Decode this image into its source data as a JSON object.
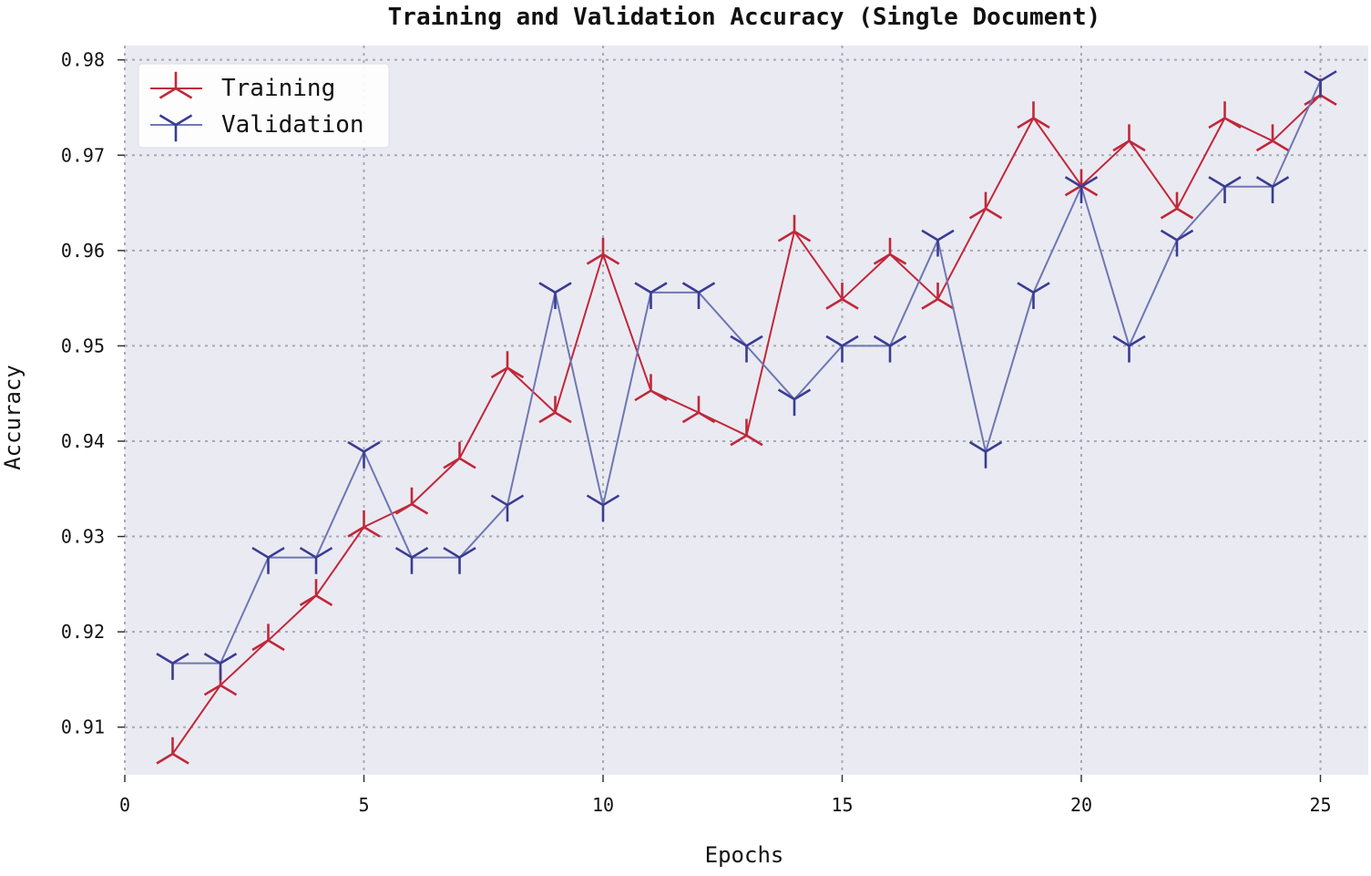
{
  "chart_data": {
    "type": "line",
    "title": "Training and Validation Accuracy (Single Document)",
    "xlabel": "Epochs",
    "ylabel": "Accuracy",
    "xlim": [
      0,
      26
    ],
    "ylim": [
      0.905,
      0.9815
    ],
    "x_ticks": [
      0,
      5,
      10,
      15,
      20,
      25
    ],
    "y_ticks": [
      0.91,
      0.92,
      0.93,
      0.94,
      0.95,
      0.96,
      0.97,
      0.98
    ],
    "x_tick_labels": [
      "0",
      "5",
      "10",
      "15",
      "20",
      "25"
    ],
    "y_tick_labels": [
      "0.91",
      "0.92",
      "0.93",
      "0.94",
      "0.95",
      "0.96",
      "0.97",
      "0.98"
    ],
    "grid": true,
    "legend_position": "top-left",
    "background_color": "#eaeaf2",
    "x": [
      1,
      2,
      3,
      4,
      5,
      6,
      7,
      8,
      9,
      10,
      11,
      12,
      13,
      14,
      15,
      16,
      17,
      18,
      19,
      20,
      21,
      22,
      23,
      24,
      25
    ],
    "series": [
      {
        "name": "Training",
        "color": "#c0283a",
        "marker": "tri-up",
        "values": [
          0.9072,
          0.9144,
          0.9191,
          0.9238,
          0.931,
          0.9334,
          0.9382,
          0.9477,
          0.943,
          0.9596,
          0.9453,
          0.943,
          0.9406,
          0.962,
          0.9549,
          0.9596,
          0.9549,
          0.9644,
          0.9739,
          0.9668,
          0.9715,
          0.9644,
          0.9739,
          0.9715,
          0.9763
        ]
      },
      {
        "name": "Validation",
        "color": "#3a3c93",
        "line_color": "#6e77b3",
        "marker": "tri-down",
        "values": [
          0.9167,
          0.9167,
          0.9278,
          0.9278,
          0.9389,
          0.9278,
          0.9278,
          0.9333,
          0.9556,
          0.9333,
          0.9556,
          0.9556,
          0.95,
          0.9444,
          0.95,
          0.95,
          0.9611,
          0.9389,
          0.9556,
          0.9667,
          0.95,
          0.9611,
          0.9667,
          0.9667,
          0.9778
        ]
      }
    ]
  }
}
